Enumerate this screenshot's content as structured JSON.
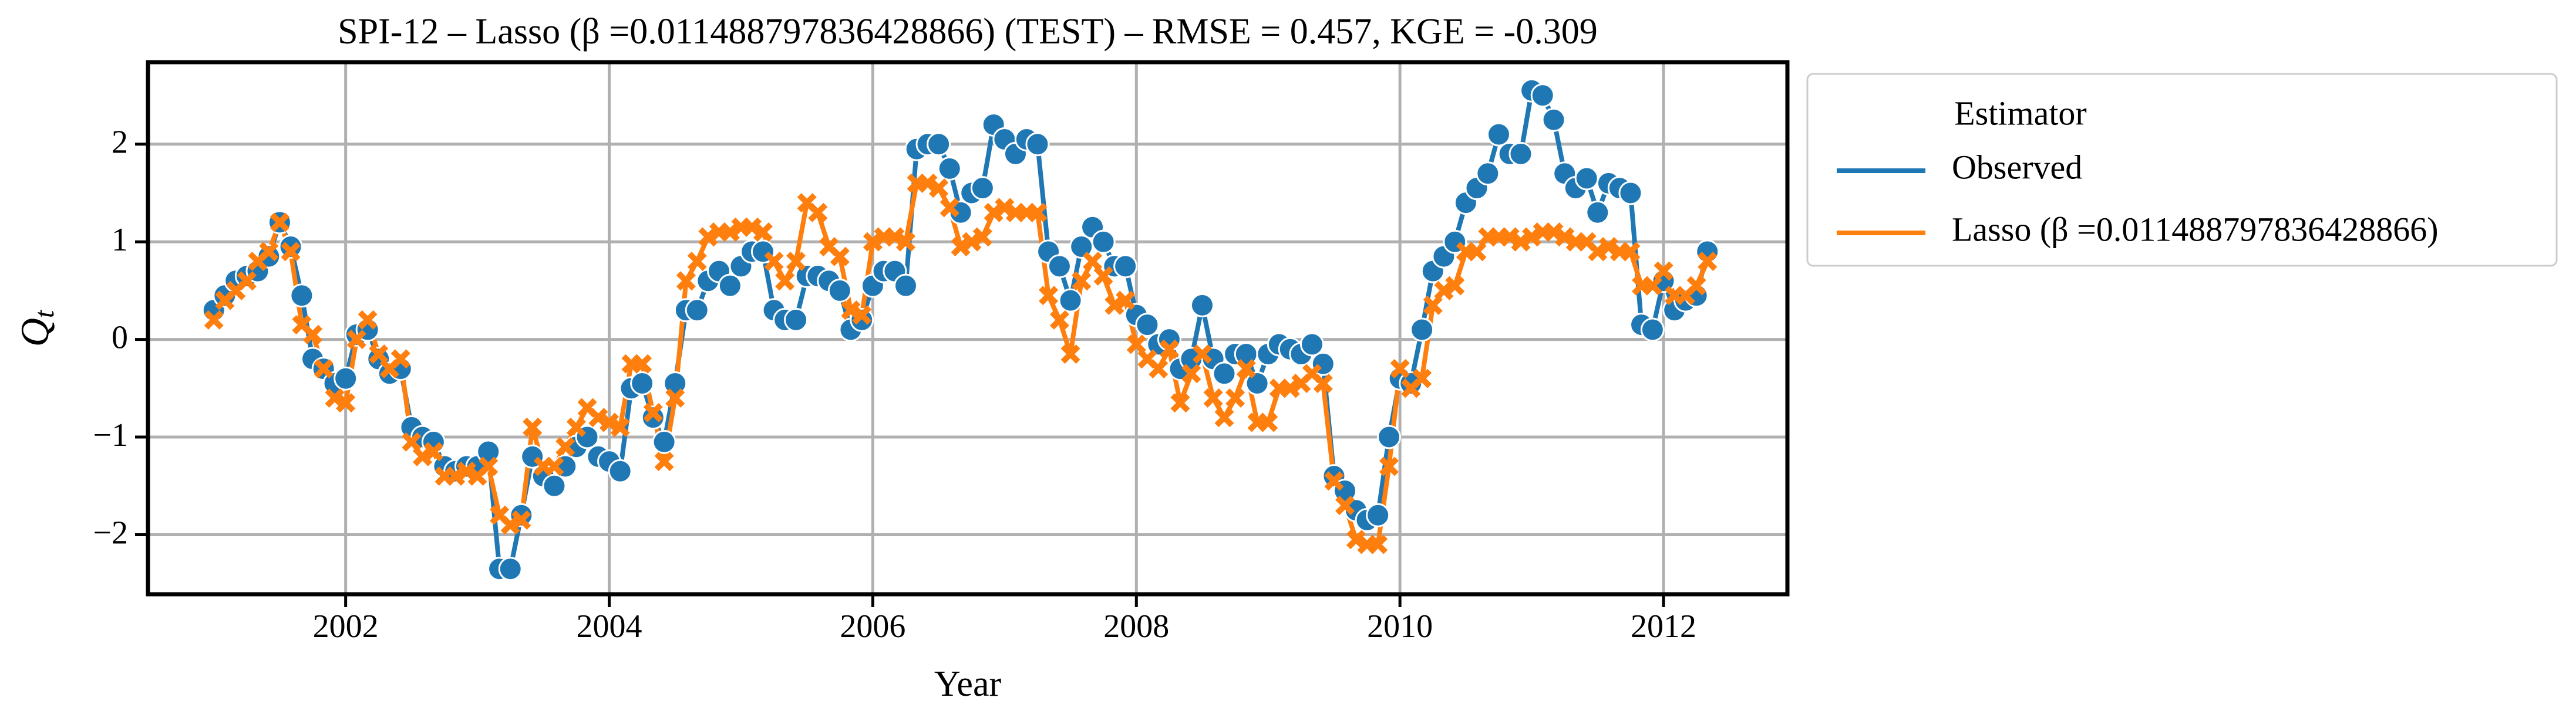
{
  "chart_data": {
    "type": "line",
    "title": "SPI-12 – Lasso (β =0.011488797836428866) (TEST) – RMSE = 0.457, KGE = -0.309",
    "xlabel": "Year",
    "ylabel": "Q",
    "ylabel_subscript": "t",
    "legend_title": "Estimator",
    "legend": "outside right",
    "grid": true,
    "xlim": [
      2000.5,
      2012.94
    ],
    "xticks": [
      2002,
      2004,
      2006,
      2008,
      2010,
      2012
    ],
    "ylim": [
      -2.61,
      2.84
    ],
    "yticks": [
      {
        "value": -2,
        "label": "−2"
      },
      {
        "value": -1,
        "label": "−1"
      },
      0,
      1,
      2
    ],
    "x": [
      2001.0,
      2001.083,
      2001.167,
      2001.25,
      2001.333,
      2001.417,
      2001.5,
      2001.583,
      2001.667,
      2001.75,
      2001.833,
      2001.917,
      2002.0,
      2002.083,
      2002.167,
      2002.25,
      2002.333,
      2002.417,
      2002.5,
      2002.583,
      2002.667,
      2002.75,
      2002.833,
      2002.917,
      2003.0,
      2003.083,
      2003.167,
      2003.25,
      2003.333,
      2003.417,
      2003.5,
      2003.583,
      2003.667,
      2003.75,
      2003.833,
      2003.917,
      2004.0,
      2004.083,
      2004.167,
      2004.25,
      2004.333,
      2004.417,
      2004.5,
      2004.583,
      2004.667,
      2004.75,
      2004.833,
      2004.917,
      2005.0,
      2005.083,
      2005.167,
      2005.25,
      2005.333,
      2005.417,
      2005.5,
      2005.583,
      2005.667,
      2005.75,
      2005.833,
      2005.917,
      2006.0,
      2006.083,
      2006.167,
      2006.25,
      2006.333,
      2006.417,
      2006.5,
      2006.583,
      2006.667,
      2006.75,
      2006.833,
      2006.917,
      2007.0,
      2007.083,
      2007.167,
      2007.25,
      2007.333,
      2007.417,
      2007.5,
      2007.583,
      2007.667,
      2007.75,
      2007.833,
      2007.917,
      2008.0,
      2008.083,
      2008.167,
      2008.25,
      2008.333,
      2008.417,
      2008.5,
      2008.583,
      2008.667,
      2008.75,
      2008.833,
      2008.917,
      2009.0,
      2009.083,
      2009.167,
      2009.25,
      2009.333,
      2009.417,
      2009.5,
      2009.583,
      2009.667,
      2009.75,
      2009.833,
      2009.917,
      2010.0,
      2010.083,
      2010.167,
      2010.25,
      2010.333,
      2010.417,
      2010.5,
      2010.583,
      2010.667,
      2010.75,
      2010.833,
      2010.917,
      2011.0,
      2011.083,
      2011.167,
      2011.25,
      2011.333,
      2011.417,
      2011.5,
      2011.583,
      2011.667,
      2011.75,
      2011.833,
      2011.917,
      2012.0,
      2012.083,
      2012.167,
      2012.25,
      2012.333
    ],
    "series": [
      {
        "name": "Observed",
        "color": "#1f77b4",
        "marker": "o",
        "values": [
          0.3,
          0.45,
          0.6,
          0.65,
          0.7,
          0.85,
          1.2,
          0.95,
          0.45,
          -0.2,
          -0.3,
          -0.45,
          -0.4,
          0.05,
          0.1,
          -0.2,
          -0.35,
          -0.3,
          -0.9,
          -1.0,
          -1.05,
          -1.3,
          -1.35,
          -1.3,
          -1.3,
          -1.15,
          -2.35,
          -2.35,
          -1.8,
          -1.2,
          -1.4,
          -1.5,
          -1.3,
          -1.1,
          -1.0,
          -1.2,
          -1.25,
          -1.35,
          -0.5,
          -0.45,
          -0.8,
          -1.05,
          -0.45,
          0.3,
          0.3,
          0.6,
          0.7,
          0.55,
          0.75,
          0.9,
          0.9,
          0.3,
          0.2,
          0.2,
          0.65,
          0.65,
          0.6,
          0.5,
          0.1,
          0.2,
          0.55,
          0.7,
          0.7,
          0.55,
          1.95,
          2.0,
          2.0,
          1.75,
          1.3,
          1.5,
          1.55,
          2.2,
          2.05,
          1.9,
          2.05,
          2.0,
          0.9,
          0.75,
          0.4,
          0.95,
          1.15,
          1.0,
          0.75,
          0.75,
          0.25,
          0.15,
          -0.05,
          0.0,
          -0.3,
          -0.2,
          0.35,
          -0.2,
          -0.35,
          -0.15,
          -0.15,
          -0.45,
          -0.15,
          -0.05,
          -0.1,
          -0.15,
          -0.05,
          -0.25,
          -1.4,
          -1.55,
          -1.75,
          -1.85,
          -1.8,
          -1.0,
          -0.4,
          -0.45,
          0.1,
          0.7,
          0.85,
          1.0,
          1.4,
          1.55,
          1.7,
          2.1,
          1.9,
          1.9,
          2.55,
          2.5,
          2.25,
          1.7,
          1.55,
          1.65,
          1.3,
          1.6,
          1.55,
          1.5,
          0.15,
          0.1,
          0.6,
          0.3,
          0.4,
          0.45,
          0.9
        ]
      },
      {
        "name": "Lasso (β =0.011488797836428866)",
        "color": "#ff7f0e",
        "marker": "x",
        "values": [
          0.2,
          0.4,
          0.5,
          0.6,
          0.8,
          0.9,
          1.2,
          0.9,
          0.15,
          0.05,
          -0.3,
          -0.6,
          -0.65,
          0.0,
          0.2,
          -0.15,
          -0.3,
          -0.2,
          -1.05,
          -1.2,
          -1.15,
          -1.4,
          -1.4,
          -1.35,
          -1.4,
          -1.3,
          -1.8,
          -1.9,
          -1.85,
          -0.9,
          -1.3,
          -1.3,
          -1.1,
          -0.9,
          -0.7,
          -0.8,
          -0.85,
          -0.9,
          -0.25,
          -0.25,
          -0.75,
          -1.25,
          -0.6,
          0.6,
          0.8,
          1.05,
          1.1,
          1.1,
          1.15,
          1.15,
          1.1,
          0.8,
          0.6,
          0.8,
          1.4,
          1.3,
          0.95,
          0.85,
          0.3,
          0.25,
          1.0,
          1.05,
          1.05,
          1.0,
          1.6,
          1.6,
          1.55,
          1.35,
          0.95,
          1.0,
          1.05,
          1.3,
          1.35,
          1.3,
          1.3,
          1.3,
          0.45,
          0.2,
          -0.15,
          0.6,
          0.8,
          0.65,
          0.35,
          0.4,
          -0.05,
          -0.2,
          -0.3,
          -0.1,
          -0.65,
          -0.35,
          -0.15,
          -0.6,
          -0.8,
          -0.6,
          -0.3,
          -0.85,
          -0.85,
          -0.5,
          -0.5,
          -0.45,
          -0.35,
          -0.45,
          -1.45,
          -1.7,
          -2.05,
          -2.1,
          -2.1,
          -1.3,
          -0.3,
          -0.5,
          -0.4,
          0.35,
          0.5,
          0.55,
          0.9,
          0.9,
          1.05,
          1.05,
          1.05,
          1.0,
          1.05,
          1.1,
          1.1,
          1.05,
          1.0,
          1.0,
          0.9,
          0.95,
          0.9,
          0.9,
          0.55,
          0.55,
          0.7,
          0.45,
          0.45,
          0.55,
          0.8
        ]
      }
    ]
  }
}
